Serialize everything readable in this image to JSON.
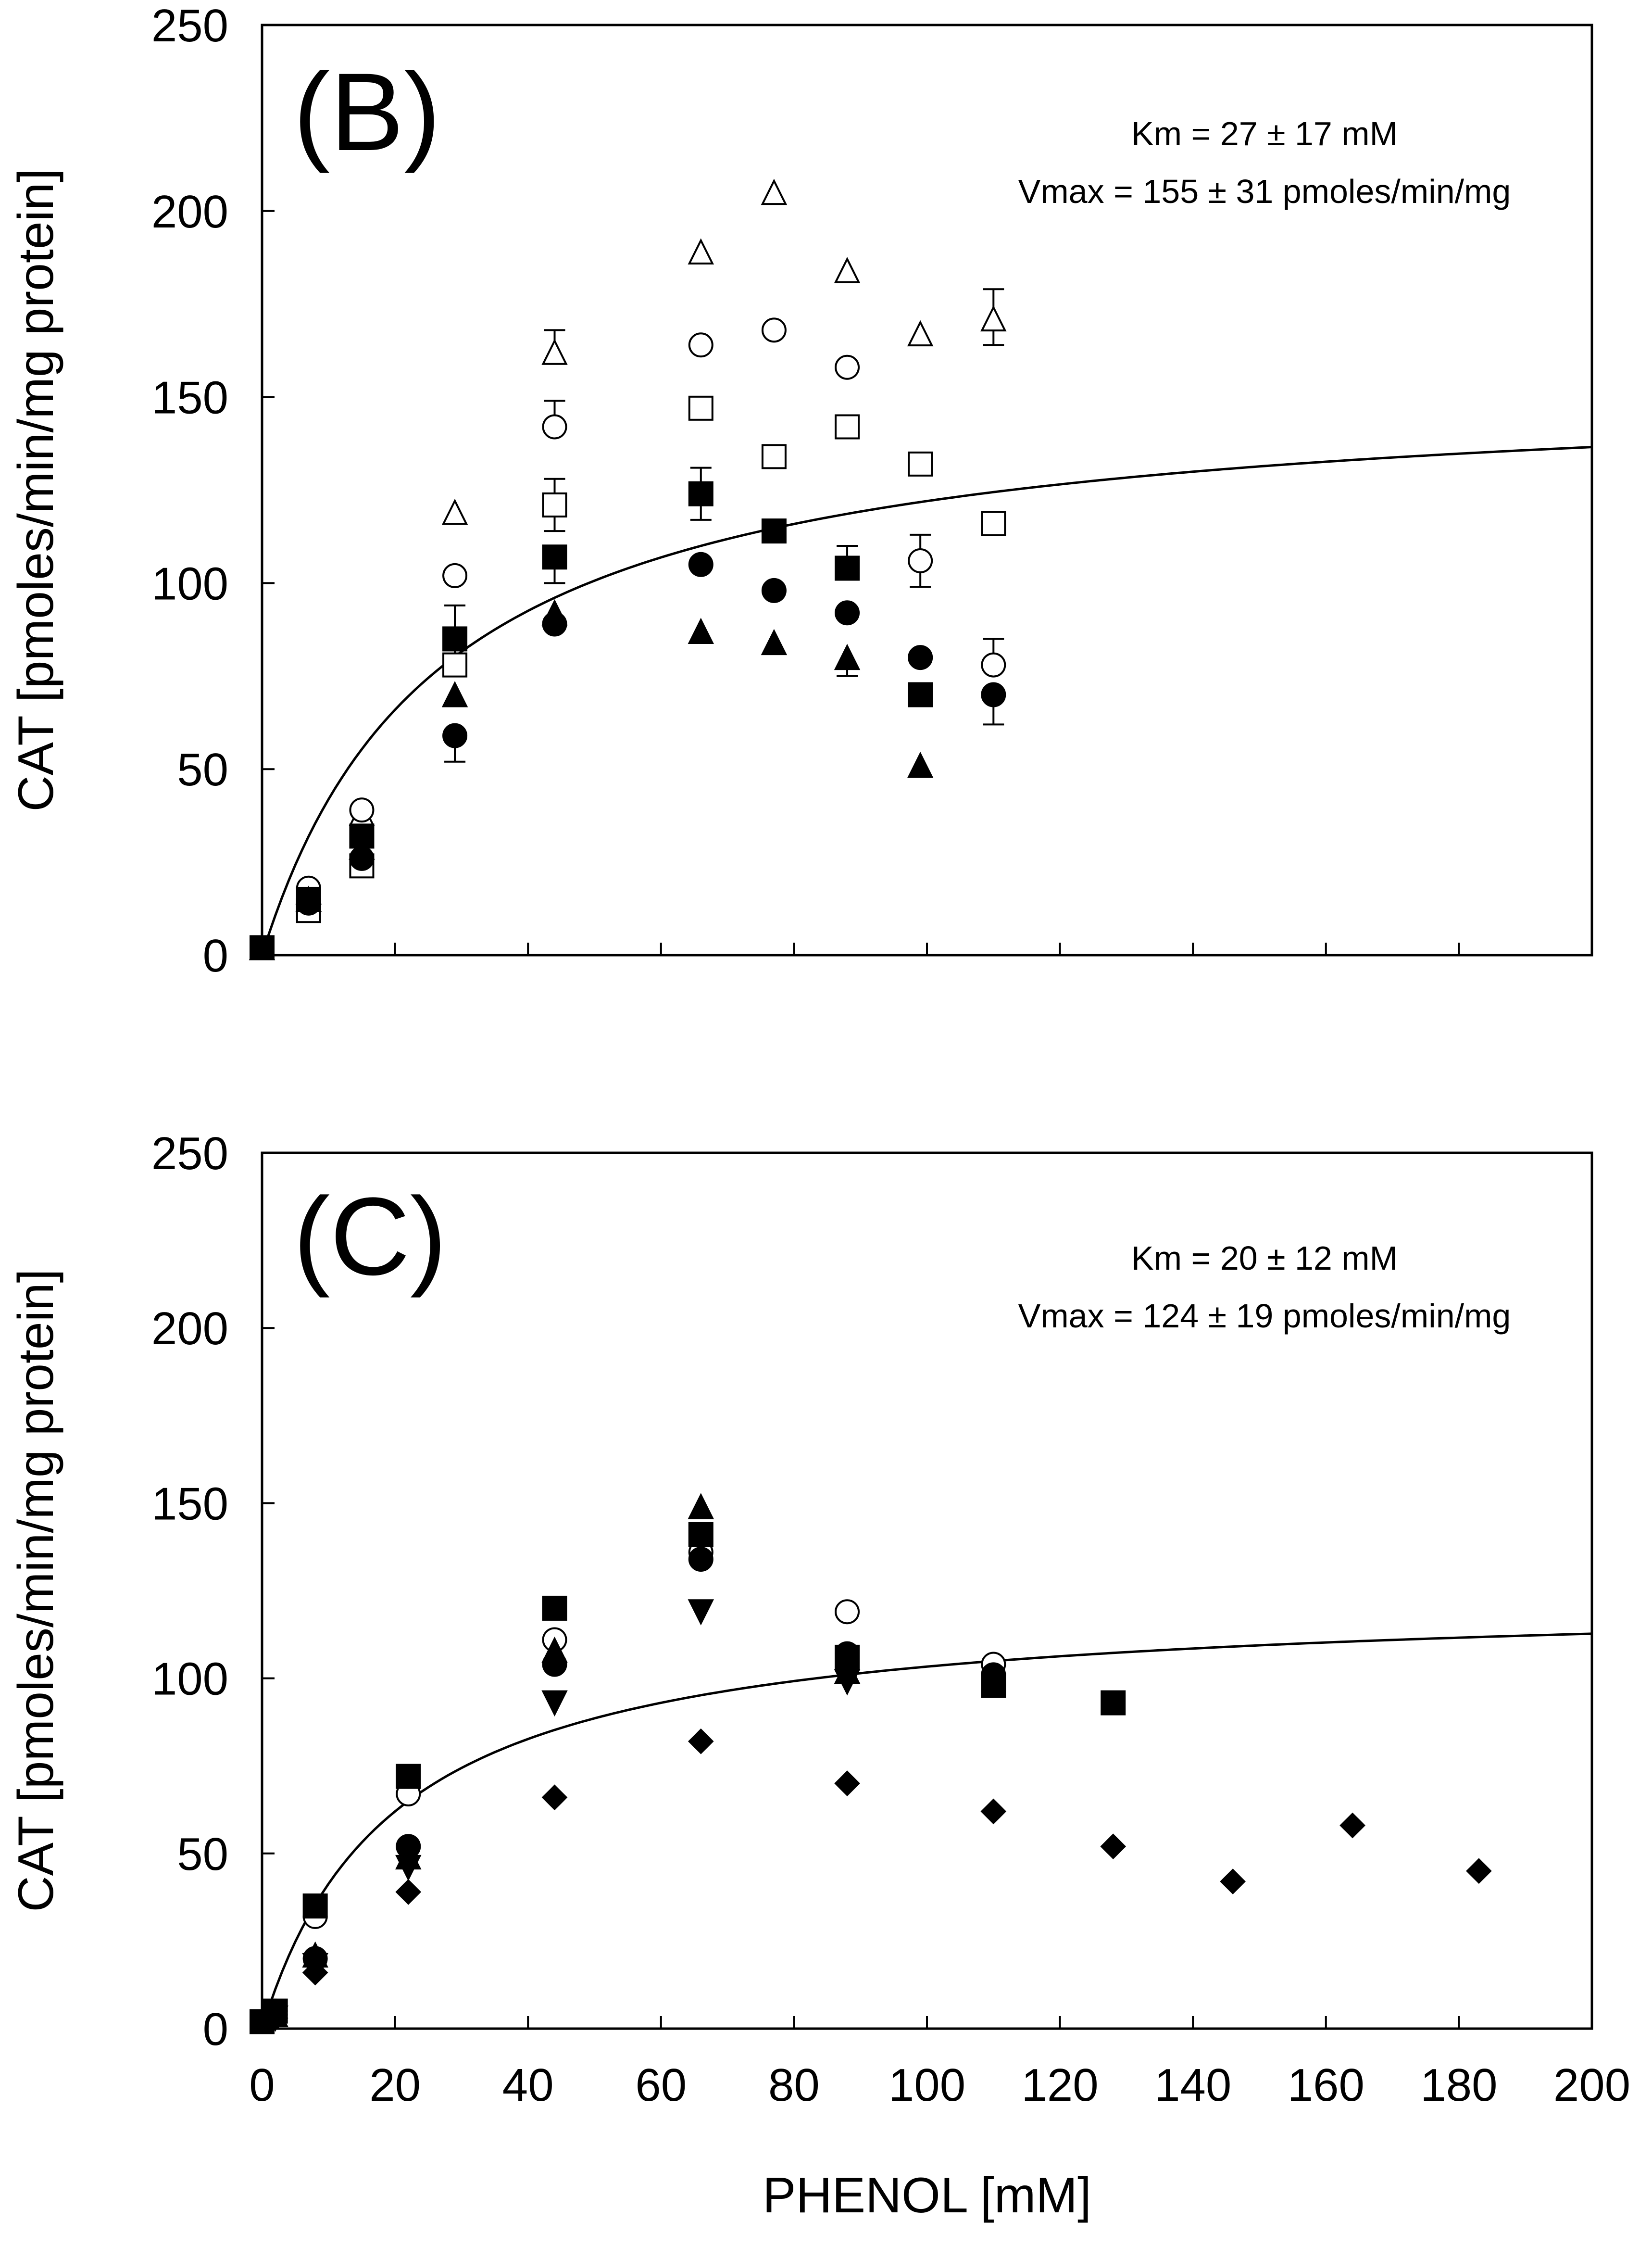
{
  "chart_data": [
    {
      "type": "scatter",
      "panel_label": "(B)",
      "ylabel": "CAT [pmoles/min/mg protein]",
      "xlabel": "",
      "xlim": [
        0,
        200
      ],
      "ylim": [
        0,
        250
      ],
      "yticks": [
        "0",
        "50",
        "100",
        "150",
        "200",
        "250"
      ],
      "xticks": [],
      "grid": false,
      "annotations": [
        "Km = 27 ± 17 mM",
        "Vmax = 155 ± 31 pmoles/min/mg"
      ],
      "fit": {
        "model": "michaelis-menten",
        "km": 27,
        "vmax": 155
      },
      "series": [
        {
          "marker": "triangle-open",
          "points": [
            [
              0,
              2
            ],
            [
              7,
              17
            ],
            [
              15,
              38
            ],
            [
              29,
              119
            ],
            [
              44,
              162
            ],
            [
              66,
              189
            ],
            [
              77,
              205
            ],
            [
              88,
              184
            ],
            [
              99,
              167
            ],
            [
              110,
              171
            ]
          ],
          "err": [
            [
              44,
              168
            ],
            [
              110,
              179
            ],
            [
              110,
              164
            ]
          ]
        },
        {
          "marker": "circle-open",
          "points": [
            [
              0,
              2
            ],
            [
              7,
              18
            ],
            [
              15,
              39
            ],
            [
              29,
              102
            ],
            [
              44,
              142
            ],
            [
              66,
              164
            ],
            [
              77,
              168
            ],
            [
              88,
              158
            ],
            [
              99,
              106
            ],
            [
              110,
              78
            ]
          ],
          "err": [
            [
              44,
              149
            ],
            [
              99,
              113
            ],
            [
              99,
              99
            ],
            [
              110,
              85
            ]
          ]
        },
        {
          "marker": "square-open",
          "points": [
            [
              0,
              2
            ],
            [
              7,
              12
            ],
            [
              15,
              24
            ],
            [
              29,
              78
            ],
            [
              44,
              121
            ],
            [
              66,
              147
            ],
            [
              77,
              134
            ],
            [
              88,
              142
            ],
            [
              99,
              132
            ],
            [
              110,
              116
            ]
          ],
          "err": [
            [
              44,
              128
            ],
            [
              44,
              114
            ],
            [
              29,
              84
            ]
          ]
        },
        {
          "marker": "square-filled",
          "points": [
            [
              0,
              2
            ],
            [
              7,
              15
            ],
            [
              15,
              32
            ],
            [
              29,
              85
            ],
            [
              44,
              107
            ],
            [
              66,
              124
            ],
            [
              77,
              114
            ],
            [
              88,
              104
            ],
            [
              99,
              70
            ]
          ],
          "err": [
            [
              29,
              94
            ],
            [
              44,
              100
            ],
            [
              66,
              131
            ],
            [
              66,
              117
            ],
            [
              88,
              110
            ]
          ]
        },
        {
          "marker": "circle-filled",
          "points": [
            [
              0,
              2
            ],
            [
              7,
              14
            ],
            [
              15,
              26
            ],
            [
              29,
              59
            ],
            [
              44,
              89
            ],
            [
              66,
              105
            ],
            [
              77,
              98
            ],
            [
              88,
              92
            ],
            [
              99,
              80
            ],
            [
              110,
              70
            ]
          ],
          "err": [
            [
              29,
              52
            ],
            [
              110,
              62
            ]
          ]
        },
        {
          "marker": "triangle-filled",
          "points": [
            [
              0,
              2
            ],
            [
              7,
              15
            ],
            [
              15,
              29
            ],
            [
              29,
              70
            ],
            [
              44,
              92
            ],
            [
              66,
              87
            ],
            [
              77,
              84
            ],
            [
              88,
              80
            ],
            [
              99,
              51
            ]
          ],
          "err": [
            [
              88,
              75
            ]
          ]
        }
      ]
    },
    {
      "type": "scatter",
      "panel_label": "(C)",
      "ylabel": "CAT [pmoles/min/mg protein]",
      "xlabel": "PHENOL [mM]",
      "xlim": [
        0,
        200
      ],
      "ylim": [
        0,
        250
      ],
      "yticks": [
        "0",
        "50",
        "100",
        "150",
        "200",
        "250"
      ],
      "xticks": [
        "0",
        "20",
        "40",
        "60",
        "80",
        "100",
        "120",
        "140",
        "160",
        "180",
        "200"
      ],
      "grid": false,
      "annotations": [
        "Km = 20 ± 12 mM",
        "Vmax = 124 ± 19 pmoles/min/mg"
      ],
      "fit": {
        "model": "michaelis-menten",
        "km": 20,
        "vmax": 124
      },
      "series": [
        {
          "marker": "circle-open",
          "points": [
            [
              2,
              5
            ],
            [
              8,
              32
            ],
            [
              22,
              67
            ],
            [
              44,
              111
            ],
            [
              66,
              136
            ],
            [
              88,
              119
            ],
            [
              110,
              104
            ]
          ]
        },
        {
          "marker": "square-filled",
          "points": [
            [
              0,
              2
            ],
            [
              2,
              5
            ],
            [
              8,
              35
            ],
            [
              22,
              72
            ],
            [
              44,
              120
            ],
            [
              66,
              141
            ],
            [
              88,
              106
            ],
            [
              110,
              98
            ],
            [
              128,
              93
            ]
          ]
        },
        {
          "marker": "circle-filled",
          "points": [
            [
              2,
              4
            ],
            [
              8,
              20
            ],
            [
              22,
              52
            ],
            [
              44,
              104
            ],
            [
              66,
              134
            ],
            [
              88,
              107
            ],
            [
              110,
              101
            ]
          ]
        },
        {
          "marker": "triangle-filled",
          "points": [
            [
              2,
              4
            ],
            [
              8,
              21
            ],
            [
              22,
              49
            ],
            [
              44,
              108
            ],
            [
              66,
              149
            ],
            [
              88,
              102
            ]
          ]
        },
        {
          "marker": "triangle-down-filled",
          "points": [
            [
              2,
              3
            ],
            [
              8,
              18
            ],
            [
              22,
              46
            ],
            [
              44,
              93
            ],
            [
              66,
              119
            ],
            [
              88,
              99
            ]
          ]
        },
        {
          "marker": "diamond-filled",
          "points": [
            [
              2,
              3
            ],
            [
              8,
              16
            ],
            [
              22,
              39
            ],
            [
              44,
              66
            ],
            [
              66,
              82
            ],
            [
              88,
              70
            ],
            [
              110,
              62
            ],
            [
              128,
              52
            ],
            [
              146,
              42
            ],
            [
              164,
              58
            ],
            [
              183,
              45
            ]
          ]
        }
      ]
    }
  ]
}
